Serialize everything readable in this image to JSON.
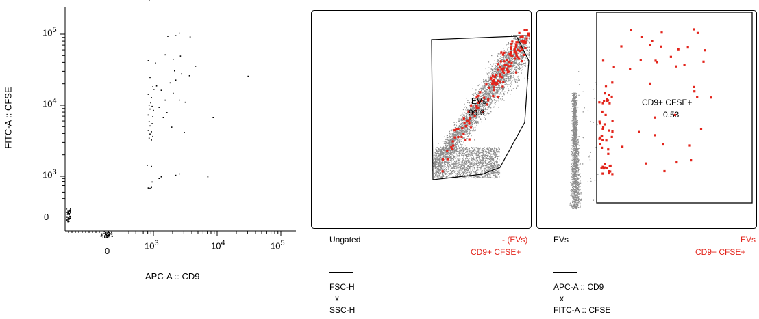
{
  "chart_data": [
    {
      "type": "scatter",
      "title": "",
      "xlabel": "APC-A :: CD9",
      "ylabel": "FITC-A :: CFSE",
      "x_scale": "biexponential",
      "y_scale": "biexponential",
      "x_ticks": [
        {
          "base": "0",
          "exp": ""
        },
        {
          "base": "10",
          "exp": "3"
        },
        {
          "base": "10",
          "exp": "4"
        },
        {
          "base": "10",
          "exp": "5"
        }
      ],
      "y_ticks": [
        {
          "base": "0",
          "exp": ""
        },
        {
          "base": "10",
          "exp": "3"
        },
        {
          "base": "10",
          "exp": "4"
        },
        {
          "base": "10",
          "exp": "5"
        }
      ],
      "point_color": "#000000",
      "points": [
        [
          660,
          300000
        ],
        [
          2500,
          105000
        ],
        [
          1650,
          95000
        ],
        [
          2200,
          97000
        ],
        [
          3700,
          93000
        ],
        [
          1500,
          52000
        ],
        [
          2600,
          50000
        ],
        [
          2000,
          45000
        ],
        [
          4500,
          36000
        ],
        [
          600,
          43000
        ],
        [
          1050,
          40000
        ],
        [
          2100,
          31000
        ],
        [
          2700,
          28000
        ],
        [
          3600,
          26500
        ],
        [
          30000,
          26000
        ],
        [
          700,
          25000
        ],
        [
          2200,
          23000
        ],
        [
          1800,
          21000
        ],
        [
          1100,
          19000
        ],
        [
          900,
          18500
        ],
        [
          1000,
          17000
        ],
        [
          1300,
          16500
        ],
        [
          2000,
          15000
        ],
        [
          600,
          14500
        ],
        [
          800,
          13000
        ],
        [
          1500,
          12000
        ],
        [
          2500,
          12000
        ],
        [
          3100,
          11200
        ],
        [
          750,
          11000
        ],
        [
          650,
          10200
        ],
        [
          850,
          9800
        ],
        [
          1200,
          9500
        ],
        [
          700,
          9000
        ],
        [
          950,
          8600
        ],
        [
          1600,
          8000
        ],
        [
          600,
          7400
        ],
        [
          900,
          7000
        ],
        [
          1400,
          6800
        ],
        [
          8500,
          6800
        ],
        [
          650,
          6000
        ],
        [
          850,
          5600
        ],
        [
          700,
          5200
        ],
        [
          1900,
          5000
        ],
        [
          600,
          4500
        ],
        [
          800,
          4300
        ],
        [
          3000,
          4200
        ],
        [
          700,
          4000
        ],
        [
          900,
          3700
        ],
        [
          650,
          3500
        ],
        [
          800,
          3300
        ],
        [
          550,
          1450
        ],
        [
          800,
          1400
        ],
        [
          2200,
          1050
        ],
        [
          2500,
          1100
        ],
        [
          1300,
          1000
        ],
        [
          7000,
          1000
        ],
        [
          1200,
          850
        ],
        [
          850,
          600
        ],
        [
          600,
          330
        ],
        [
          700,
          320
        ],
        [
          800,
          350
        ]
      ],
      "pile_up": "many events at x = 0 and y = 0"
    },
    {
      "type": "scatter",
      "title": "",
      "xlabel": "FSC-H",
      "ylabel": "SSC-H",
      "population_label": "Ungated",
      "overlay_labels": [
        "- (EVs)",
        "CD9+ CFSE+"
      ],
      "gate": {
        "name": "EVs",
        "value": "99.6"
      },
      "series": [
        {
          "name": "Ungated",
          "color": "#8c8c8c",
          "count": 4500
        },
        {
          "name": "CD9+ CFSE+",
          "color": "#e3241b",
          "count": 150
        }
      ]
    },
    {
      "type": "scatter",
      "title": "",
      "xlabel": "APC-A :: CD9",
      "ylabel": "FITC-A :: CFSE",
      "population_label": "EVs",
      "overlay_labels": [
        "EVs",
        "CD9+ CFSE+"
      ],
      "gate": {
        "name": "CD9+ CFSE+",
        "value": "0.53"
      },
      "series": [
        {
          "name": "EVs",
          "color": "#8c8c8c",
          "count": 1500
        },
        {
          "name": "CD9+ CFSE+",
          "color": "#e3241b",
          "count": 85
        }
      ]
    }
  ],
  "panels": {
    "left": {
      "xlabel": "APC-A :: CD9",
      "ylabel": "FITC-A :: CFSE",
      "xticks": [
        {
          "base": "0",
          "exp": ""
        },
        {
          "base": "10",
          "exp": "3"
        },
        {
          "base": "10",
          "exp": "4"
        },
        {
          "base": "10",
          "exp": "5"
        }
      ],
      "yticks": [
        {
          "base": "0",
          "exp": ""
        },
        {
          "base": "10",
          "exp": "3"
        },
        {
          "base": "10",
          "exp": "4"
        },
        {
          "base": "10",
          "exp": "5"
        }
      ]
    },
    "middle": {
      "gate_name": "EVs",
      "gate_value": "99.6",
      "population": "Ungated",
      "overlay_parent": "- (EVs)",
      "overlay_child": "CD9+ CFSE+",
      "axis_x": "FSC-H",
      "axis_sep": "x",
      "axis_y": "SSC-H"
    },
    "right": {
      "gate_name": "CD9+ CFSE+",
      "gate_value": "0.53",
      "population": "EVs",
      "overlay_parent": "EVs",
      "overlay_child": "CD9+ CFSE+",
      "axis_x": "APC-A :: CD9",
      "axis_sep": "x",
      "axis_y": "FITC-A :: CFSE"
    }
  },
  "colors": {
    "background_events": "#8c8c8c",
    "highlight_events": "#e3241b",
    "gate_line": "#000000"
  }
}
